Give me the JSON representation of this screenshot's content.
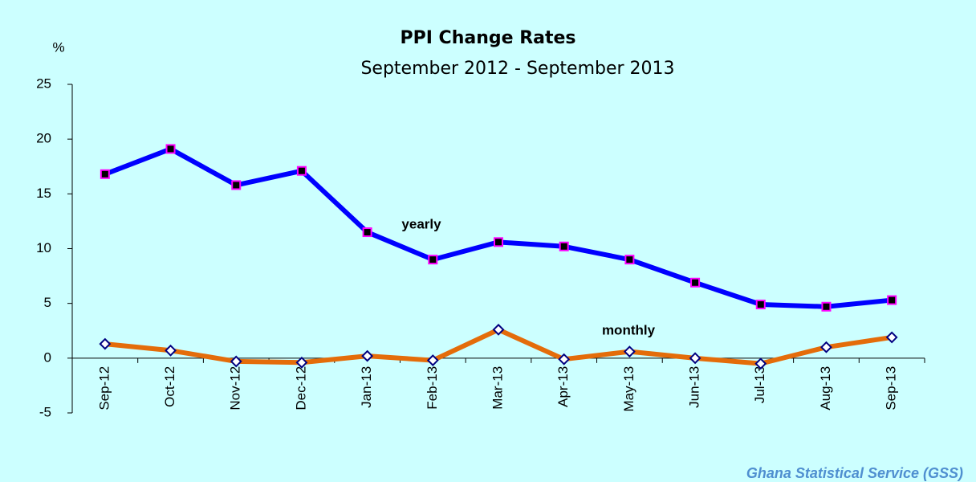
{
  "chart_data": {
    "type": "line",
    "title": "PPI Change Rates",
    "subtitle": "September 2012 - September  2013",
    "y_axis_label": "%",
    "categories": [
      "Sep-12",
      "Oct-12",
      "Nov-12",
      "Dec-12",
      "Jan-13",
      "Feb-13",
      "Mar-13",
      "Apr-13",
      "May-13",
      "Jun-13",
      "Jul-13",
      "Aug-13",
      "Sep-13"
    ],
    "series": [
      {
        "name": "yearly",
        "color": "#0000ff",
        "marker": "square",
        "marker_fill": "#000000",
        "marker_edge": "#ff00ff",
        "values": [
          16.8,
          19.1,
          15.8,
          17.1,
          11.5,
          9.0,
          10.6,
          10.2,
          9.0,
          6.9,
          4.9,
          4.7,
          5.3
        ]
      },
      {
        "name": "monthly",
        "color": "#e46c0a",
        "marker": "diamond",
        "marker_fill": "#ffffff",
        "marker_edge": "#000080",
        "values": [
          1.3,
          0.7,
          -0.3,
          -0.4,
          0.2,
          -0.2,
          2.6,
          -0.1,
          0.6,
          0.0,
          -0.5,
          1.0,
          1.9
        ]
      }
    ],
    "ylim": [
      -5,
      25
    ],
    "yticks": [
      -5,
      0,
      5,
      10,
      15,
      20,
      25
    ],
    "grid": false,
    "source": "Ghana Statistical Service (GSS)"
  }
}
